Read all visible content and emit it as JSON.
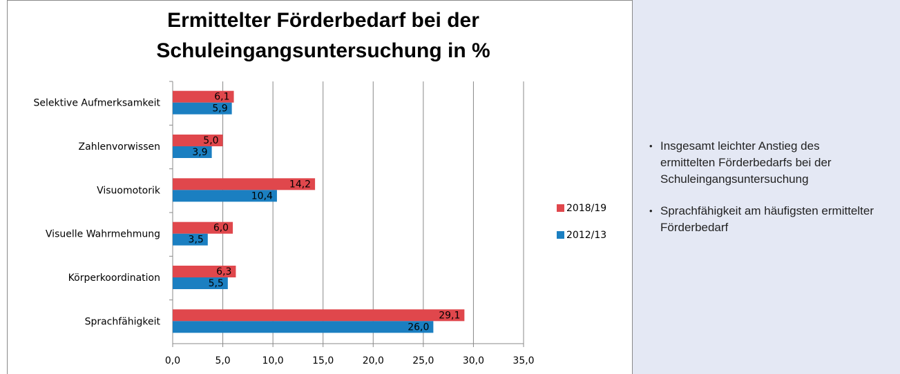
{
  "chart_data": {
    "type": "bar",
    "orientation": "horizontal",
    "title": "Ermittelter Förderbedarf bei der Schuleingangsuntersuchung in %",
    "categories": [
      "Selektive Aufmerksamkeit",
      "Zahlenvorwissen",
      "Visuomotorik",
      "Visuelle Wahrmehmung",
      "Körperkoordination",
      "Sprachfähigkeit"
    ],
    "series": [
      {
        "name": "2018/19",
        "color": "#e0474c",
        "values": [
          6.1,
          5.0,
          14.2,
          6.0,
          6.3,
          29.1
        ],
        "value_labels": [
          "6,1",
          "5,0",
          "14,2",
          "6,0",
          "6,3",
          "29,1"
        ]
      },
      {
        "name": "2012/13",
        "color": "#1b7fc1",
        "values": [
          5.9,
          3.9,
          10.4,
          3.5,
          5.5,
          26.0
        ],
        "value_labels": [
          "5,9",
          "3,9",
          "10,4",
          "3,5",
          "5,5",
          "26,0"
        ]
      }
    ],
    "xlim": [
      0,
      35
    ],
    "xticks": [
      {
        "value": 0,
        "label": "0,0"
      },
      {
        "value": 5,
        "label": "5,0"
      },
      {
        "value": 10,
        "label": "10,0"
      },
      {
        "value": 15,
        "label": "15,0"
      },
      {
        "value": 20,
        "label": "20,0"
      },
      {
        "value": 25,
        "label": "25,0"
      },
      {
        "value": 30,
        "label": "30,0"
      },
      {
        "value": 35,
        "label": "35,0"
      }
    ],
    "grid": true,
    "legend": "right"
  },
  "notes": [
    "Insgesamt leichter Anstieg des ermittelten Förderbedarfs bei der Schuleingangsuntersuchung",
    "Sprachfähigkeit am häufigsten ermittelter Förderbedarf"
  ]
}
